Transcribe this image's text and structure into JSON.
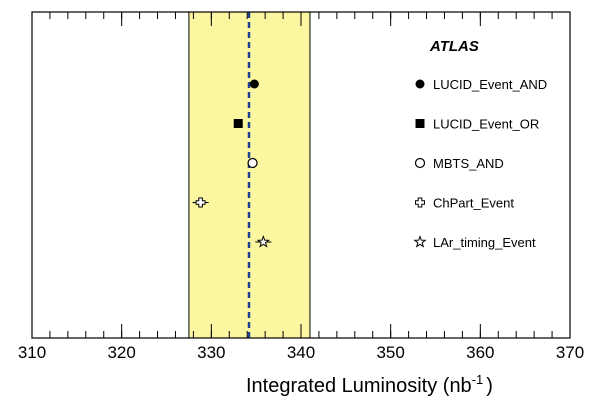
{
  "chart_data": {
    "type": "scatter",
    "title": "ATLAS",
    "xlabel": "Integrated Luminosity (nb",
    "xlabel_superscript": "-1",
    "xlabel_suffix": ")",
    "xlim": [
      310,
      370
    ],
    "xticks": [
      "310",
      "320",
      "330",
      "340",
      "350",
      "360",
      "370"
    ],
    "band": {
      "low": 327.5,
      "high": 341.0,
      "color": "#faf7a0"
    },
    "mean": 334.2,
    "series": [
      {
        "name": "LUCID_Event_AND",
        "marker": "filled-circle",
        "x": 334.8,
        "x_err": 0.0
      },
      {
        "name": "LUCID_Event_OR",
        "marker": "filled-square",
        "x": 333.0,
        "x_err": 0.0
      },
      {
        "name": "MBTS_AND",
        "marker": "open-circle",
        "x": 334.6,
        "x_err": 0.0
      },
      {
        "name": "ChPart_Event",
        "marker": "open-cross",
        "x": 328.8,
        "x_err": 0.9
      },
      {
        "name": "LAr_timing_Event",
        "marker": "open-star",
        "x": 335.8,
        "x_err": 0.9
      }
    ]
  }
}
